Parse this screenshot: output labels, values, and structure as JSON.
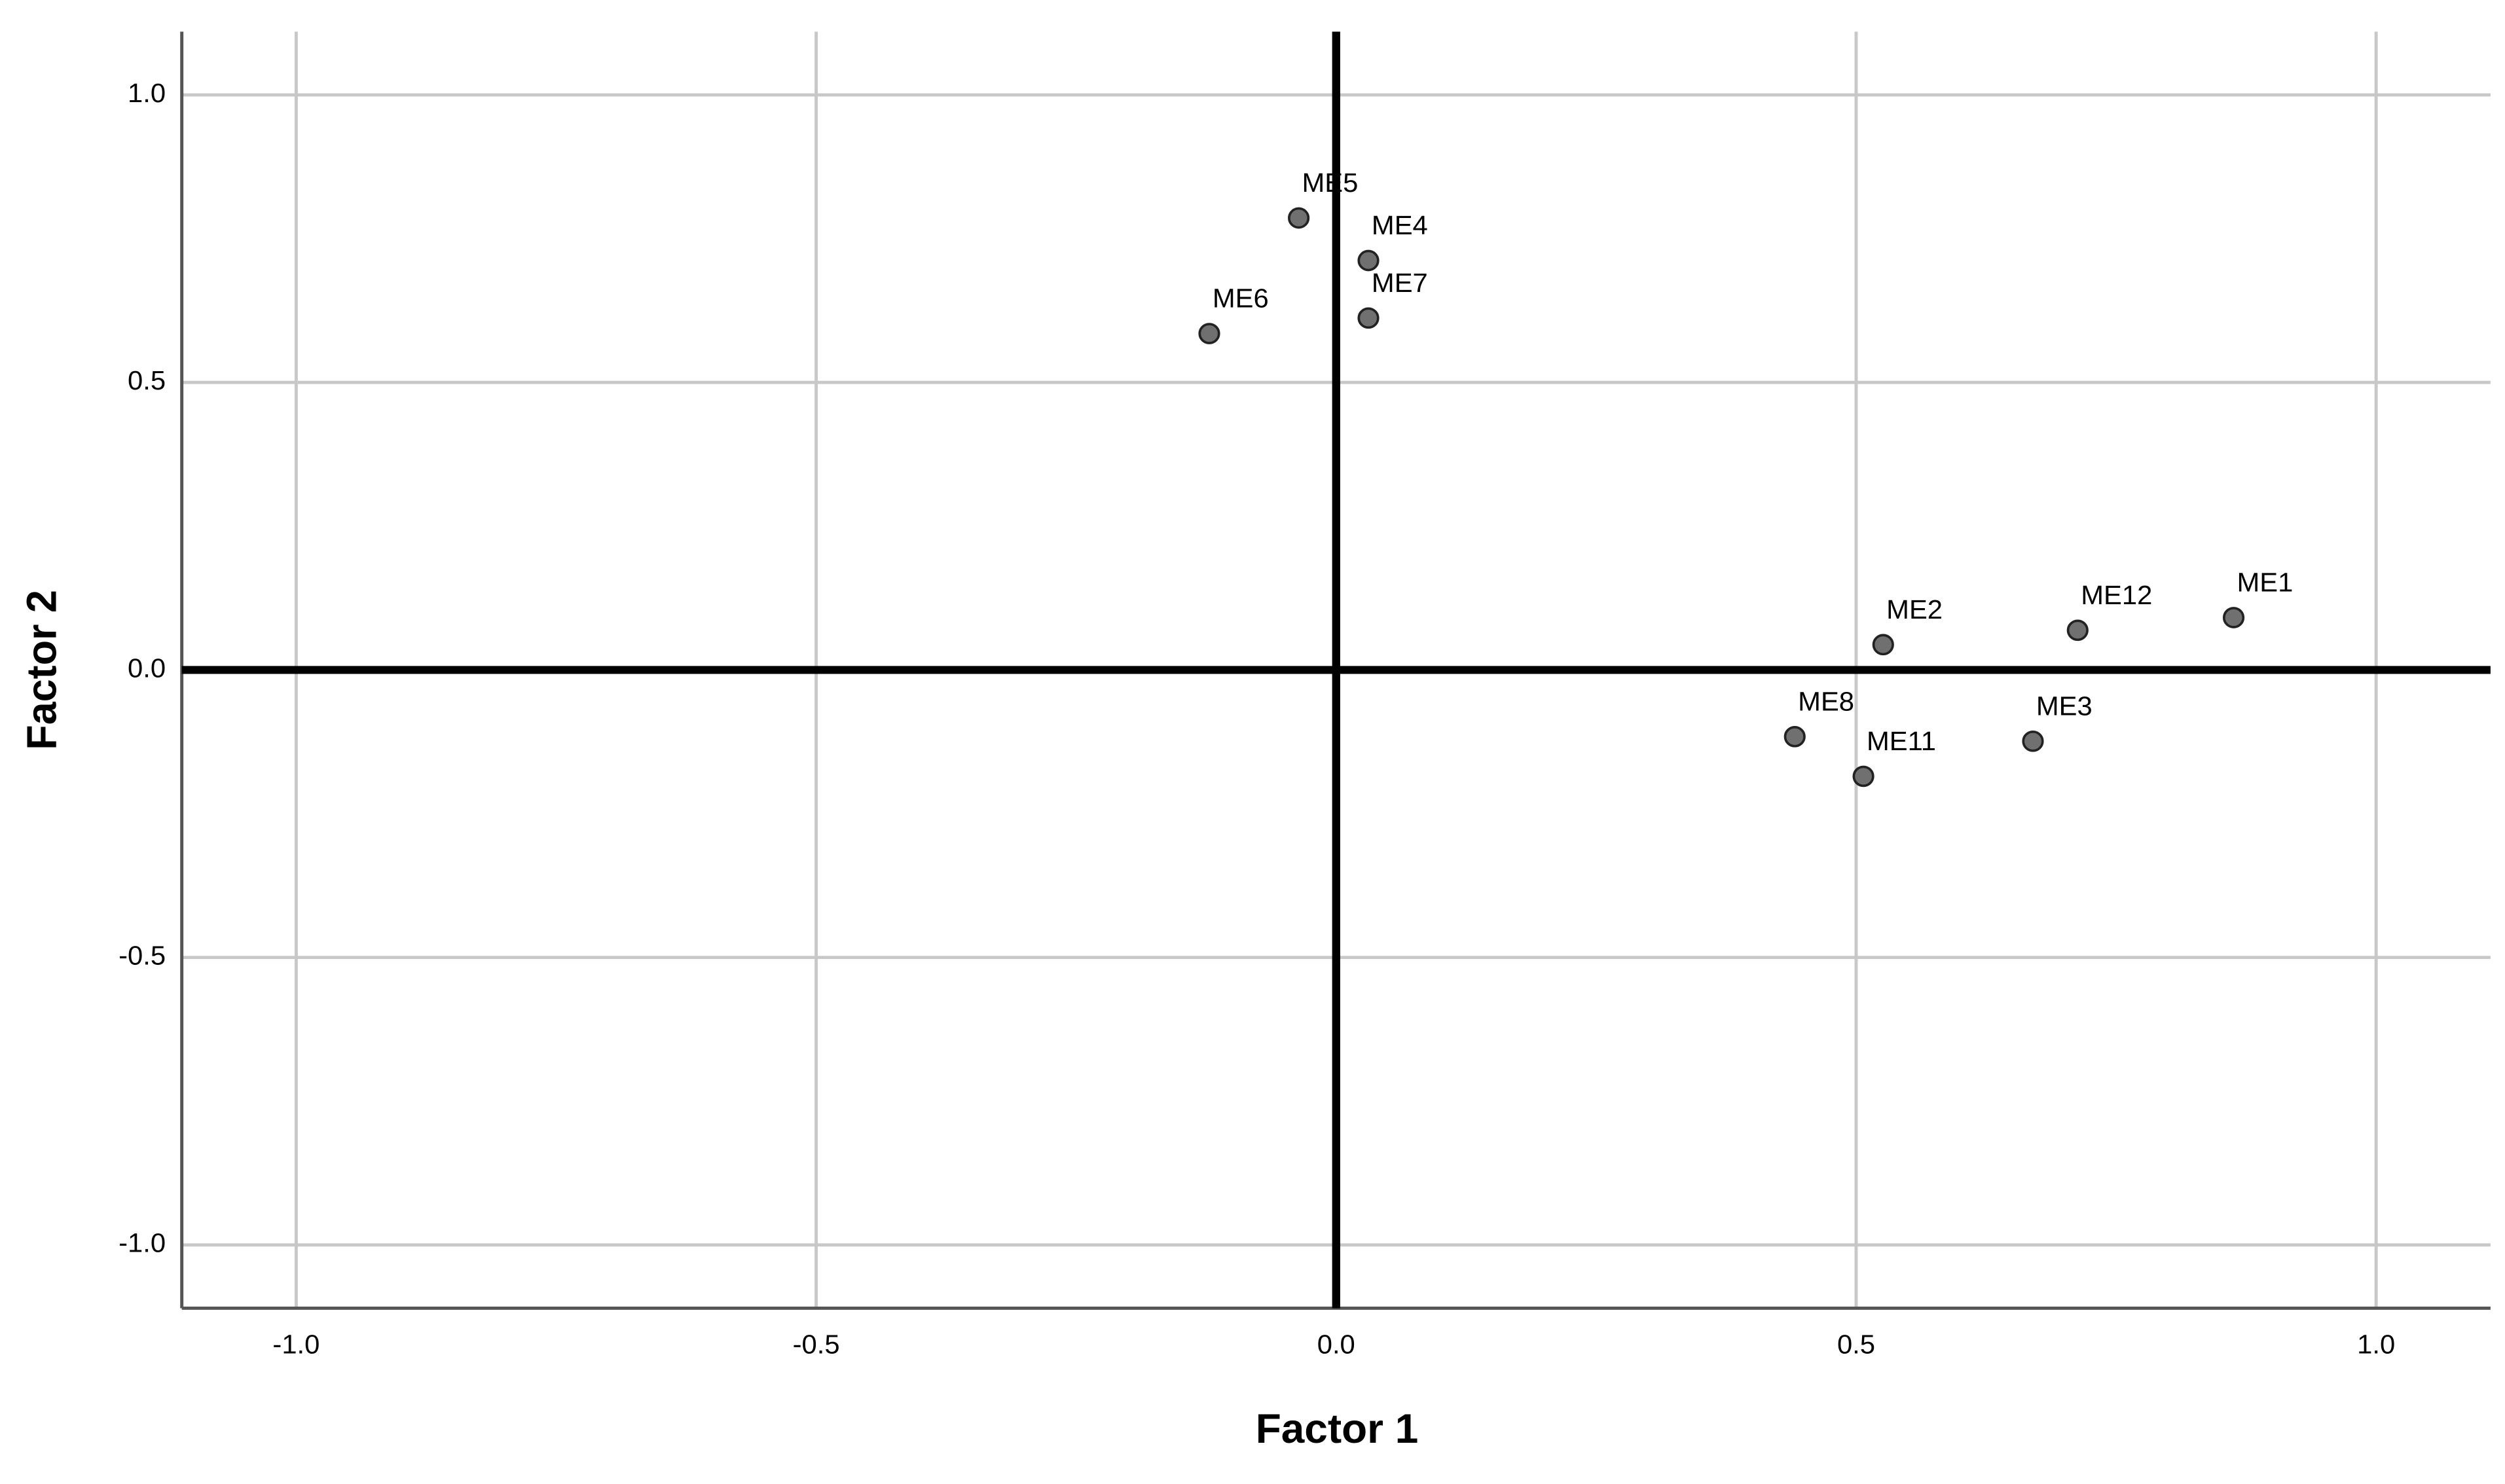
{
  "chart_data": {
    "type": "scatter",
    "x_label": "Factor 1",
    "y_label": "Factor 2",
    "x": [
      -0.036,
      0.031,
      0.031,
      -0.122,
      0.526,
      0.713,
      0.863,
      0.441,
      0.67,
      0.507
    ],
    "y": [
      0.786,
      0.712,
      0.612,
      0.585,
      0.044,
      0.069,
      0.091,
      -0.116,
      -0.124,
      -0.185
    ],
    "labels": [
      "ME5",
      "ME4",
      "ME7",
      "ME6",
      "ME2",
      "ME12",
      "ME1",
      "ME8",
      "ME3",
      "ME11"
    ],
    "color": "#707070",
    "xlim": [
      -1.11,
      1.11
    ],
    "ylim": [
      -1.11,
      1.11
    ],
    "xticks": [
      {
        "value": -1,
        "label": "-1.0"
      },
      {
        "value": -0.5,
        "label": "-0.5"
      },
      {
        "value": 0,
        "label": "0.0"
      },
      {
        "value": 0.5,
        "label": "0.5"
      },
      {
        "value": 1,
        "label": "1.0"
      }
    ],
    "yticks": [
      {
        "value": -1,
        "label": "-1.0"
      },
      {
        "value": -0.5,
        "label": "-0.5"
      },
      {
        "value": 0,
        "label": "0.0"
      },
      {
        "value": 0.5,
        "label": "0.5"
      },
      {
        "value": 1,
        "label": "1.0"
      }
    ],
    "grid": true
  }
}
